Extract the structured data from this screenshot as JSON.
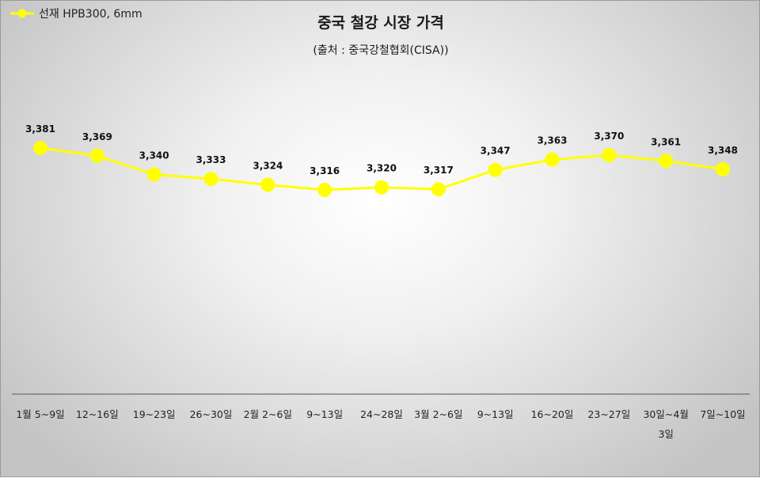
{
  "chart_data": {
    "type": "line",
    "title": "중국 철강 시장 가격",
    "subtitle": "(출처 : 중국강철협회(CISA))",
    "categories": [
      [
        "1월 5~9일"
      ],
      [
        "12~16일"
      ],
      [
        "19~23일"
      ],
      [
        "26~30일"
      ],
      [
        "2월 2~6일"
      ],
      [
        "9~13일"
      ],
      [
        "24~28일"
      ],
      [
        "3월 2~6일"
      ],
      [
        "9~13일"
      ],
      [
        "16~20일"
      ],
      [
        "23~27일"
      ],
      [
        "30일~4월",
        "3일"
      ],
      [
        "7일~10일"
      ]
    ],
    "series": [
      {
        "name": "선재 HPB300, 6mm",
        "values": [
          3381,
          3369,
          3340,
          3333,
          3324,
          3316,
          3320,
          3317,
          3347,
          3363,
          3370,
          3361,
          3348
        ],
        "labels": [
          "3,381",
          "3,369",
          "3,340",
          "3,333",
          "3,324",
          "3,316",
          "3,320",
          "3,317",
          "3,347",
          "3,363",
          "3,370",
          "3,361",
          "3,348"
        ],
        "color": "#ffff00"
      }
    ],
    "legend_position": "top-left",
    "grid": false,
    "yaxis_visible": false
  }
}
